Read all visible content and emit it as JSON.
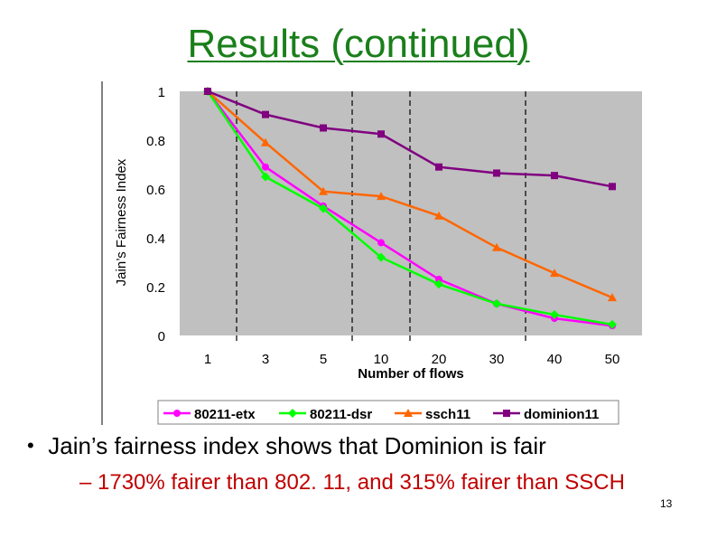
{
  "slide": {
    "title": "Results (continued)",
    "bullet": "Jain’s fairness index shows that Dominion is fair",
    "sub_bullet": "1730% fairer than 802. 11, and 315% fairer than SSCH",
    "page_number": "13"
  },
  "chart_data": {
    "type": "line",
    "categories": [
      "1",
      "3",
      "5",
      "10",
      "20",
      "30",
      "40",
      "50"
    ],
    "xlabel": "Number of flows",
    "ylabel": "Jain’s Fairness Index",
    "ylim": [
      0,
      1
    ],
    "yticks": [
      0,
      0.2,
      0.4,
      0.6,
      0.8,
      1
    ],
    "ytick_labels": [
      "0",
      "0.2",
      "0.4",
      "0.6",
      "0.8",
      "1"
    ],
    "plot_background": "#c0c0c0",
    "legend_position": "bottom",
    "series": [
      {
        "name": "80211-etx",
        "color": "#ff00ff",
        "marker": "circle",
        "values": [
          1.0,
          0.69,
          0.53,
          0.38,
          0.23,
          0.13,
          0.07,
          0.04
        ]
      },
      {
        "name": "80211-dsr",
        "color": "#00ff00",
        "marker": "diamond",
        "values": [
          1.0,
          0.65,
          0.52,
          0.32,
          0.21,
          0.13,
          0.085,
          0.045
        ]
      },
      {
        "name": "ssch11",
        "color": "#ff6600",
        "marker": "triangle",
        "values": [
          1.0,
          0.79,
          0.59,
          0.57,
          0.49,
          0.36,
          0.255,
          0.155
        ]
      },
      {
        "name": "dominion11",
        "color": "#800080",
        "marker": "square",
        "values": [
          1.0,
          0.905,
          0.85,
          0.825,
          0.69,
          0.665,
          0.655,
          0.61
        ]
      }
    ],
    "dashed_separators_after": [
      "1",
      "5",
      "10",
      "30"
    ]
  }
}
